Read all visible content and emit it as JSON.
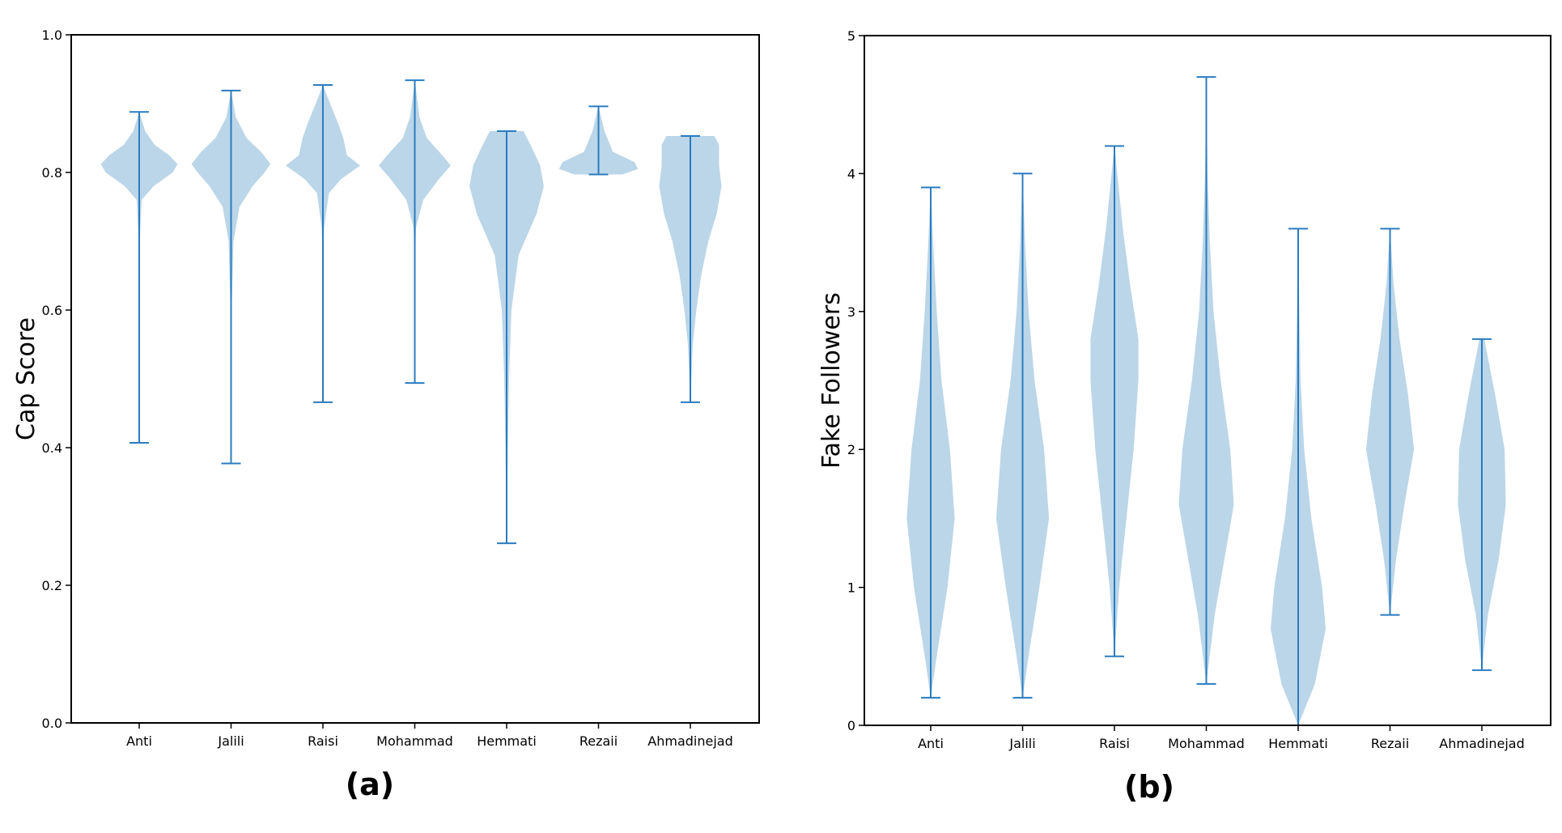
{
  "chart_data": [
    {
      "type": "violin",
      "panel_label": "(a)",
      "title": "",
      "xlabel": "",
      "ylabel": "Cap Score",
      "ylim": [
        0,
        1.0
      ],
      "yticks": [
        "0.0",
        "0.2",
        "0.4",
        "0.6",
        "0.8",
        "1.0"
      ],
      "categories": [
        "Anti",
        "Jalili",
        "Raisi",
        "Mohammad",
        "Hemmati",
        "Rezaii",
        "Ahmadinejad"
      ],
      "series": [
        {
          "name": "Anti",
          "min": 0.407,
          "max": 0.888,
          "profile": [
            [
              0.407,
              0.0
            ],
            [
              0.6,
              0.0
            ],
            [
              0.7,
              0.005
            ],
            [
              0.76,
              0.02
            ],
            [
              0.78,
              0.12
            ],
            [
              0.8,
              0.28
            ],
            [
              0.812,
              0.32
            ],
            [
              0.825,
              0.25
            ],
            [
              0.84,
              0.13
            ],
            [
              0.86,
              0.05
            ],
            [
              0.888,
              0.0
            ]
          ]
        },
        {
          "name": "Jalili",
          "min": 0.377,
          "max": 0.919,
          "profile": [
            [
              0.377,
              0.0
            ],
            [
              0.6,
              0.005
            ],
            [
              0.7,
              0.02
            ],
            [
              0.75,
              0.07
            ],
            [
              0.78,
              0.18
            ],
            [
              0.8,
              0.28
            ],
            [
              0.812,
              0.33
            ],
            [
              0.83,
              0.25
            ],
            [
              0.85,
              0.13
            ],
            [
              0.88,
              0.04
            ],
            [
              0.919,
              0.0
            ]
          ]
        },
        {
          "name": "Raisi",
          "min": 0.466,
          "max": 0.927,
          "profile": [
            [
              0.466,
              0.0
            ],
            [
              0.65,
              0.0
            ],
            [
              0.72,
              0.01
            ],
            [
              0.77,
              0.05
            ],
            [
              0.79,
              0.15
            ],
            [
              0.81,
              0.31
            ],
            [
              0.825,
              0.2
            ],
            [
              0.85,
              0.17
            ],
            [
              0.87,
              0.13
            ],
            [
              0.9,
              0.06
            ],
            [
              0.927,
              0.0
            ]
          ]
        },
        {
          "name": "Mohammad",
          "min": 0.494,
          "max": 0.934,
          "profile": [
            [
              0.494,
              0.0
            ],
            [
              0.65,
              0.0
            ],
            [
              0.72,
              0.01
            ],
            [
              0.76,
              0.07
            ],
            [
              0.79,
              0.2
            ],
            [
              0.81,
              0.3
            ],
            [
              0.825,
              0.23
            ],
            [
              0.85,
              0.1
            ],
            [
              0.88,
              0.04
            ],
            [
              0.934,
              0.0
            ]
          ]
        },
        {
          "name": "Hemmati",
          "min": 0.261,
          "max": 0.86,
          "profile": [
            [
              0.261,
              0.0
            ],
            [
              0.4,
              0.01
            ],
            [
              0.5,
              0.02
            ],
            [
              0.6,
              0.04
            ],
            [
              0.68,
              0.1
            ],
            [
              0.74,
              0.25
            ],
            [
              0.78,
              0.31
            ],
            [
              0.81,
              0.28
            ],
            [
              0.84,
              0.2
            ],
            [
              0.86,
              0.14
            ]
          ]
        },
        {
          "name": "Rezaii",
          "min": 0.797,
          "max": 0.896,
          "profile": [
            [
              0.797,
              0.2
            ],
            [
              0.805,
              0.33
            ],
            [
              0.815,
              0.3
            ],
            [
              0.83,
              0.12
            ],
            [
              0.86,
              0.05
            ],
            [
              0.896,
              0.0
            ]
          ]
        },
        {
          "name": "Ahmadinejad",
          "min": 0.466,
          "max": 0.853,
          "profile": [
            [
              0.466,
              0.0
            ],
            [
              0.55,
              0.02
            ],
            [
              0.6,
              0.05
            ],
            [
              0.65,
              0.09
            ],
            [
              0.7,
              0.15
            ],
            [
              0.74,
              0.22
            ],
            [
              0.78,
              0.26
            ],
            [
              0.81,
              0.24
            ],
            [
              0.84,
              0.24
            ],
            [
              0.853,
              0.2
            ]
          ]
        }
      ]
    },
    {
      "type": "violin",
      "panel_label": "(b)",
      "title": "",
      "xlabel": "",
      "ylabel": "Fake Followers",
      "ylim": [
        0,
        5
      ],
      "yticks": [
        "0",
        "1",
        "2",
        "3",
        "4",
        "5"
      ],
      "categories": [
        "Anti",
        "Jalili",
        "Raisi",
        "Mohammad",
        "Hemmati",
        "Rezaii",
        "Ahmadinejad"
      ],
      "series": [
        {
          "name": "Anti",
          "min": 0.2,
          "max": 3.9,
          "profile": [
            [
              0.2,
              0.0
            ],
            [
              0.5,
              0.05
            ],
            [
              1.0,
              0.14
            ],
            [
              1.5,
              0.2
            ],
            [
              2.0,
              0.16
            ],
            [
              2.5,
              0.09
            ],
            [
              3.0,
              0.05
            ],
            [
              3.5,
              0.02
            ],
            [
              3.9,
              0.0
            ]
          ]
        },
        {
          "name": "Jalili",
          "min": 0.2,
          "max": 4.0,
          "profile": [
            [
              0.2,
              0.0
            ],
            [
              0.5,
              0.05
            ],
            [
              1.0,
              0.14
            ],
            [
              1.5,
              0.22
            ],
            [
              2.0,
              0.18
            ],
            [
              2.5,
              0.1
            ],
            [
              3.0,
              0.05
            ],
            [
              3.5,
              0.02
            ],
            [
              4.0,
              0.0
            ]
          ]
        },
        {
          "name": "Raisi",
          "min": 0.5,
          "max": 4.2,
          "profile": [
            [
              0.5,
              0.0
            ],
            [
              1.0,
              0.04
            ],
            [
              1.5,
              0.1
            ],
            [
              2.0,
              0.16
            ],
            [
              2.5,
              0.2
            ],
            [
              2.8,
              0.2
            ],
            [
              3.2,
              0.13
            ],
            [
              3.6,
              0.07
            ],
            [
              4.2,
              0.0
            ]
          ]
        },
        {
          "name": "Mohammad",
          "min": 0.3,
          "max": 4.7,
          "profile": [
            [
              0.3,
              0.0
            ],
            [
              0.8,
              0.07
            ],
            [
              1.2,
              0.15
            ],
            [
              1.6,
              0.23
            ],
            [
              2.0,
              0.2
            ],
            [
              2.5,
              0.12
            ],
            [
              3.0,
              0.06
            ],
            [
              3.5,
              0.03
            ],
            [
              4.0,
              0.01
            ],
            [
              4.7,
              0.0
            ]
          ]
        },
        {
          "name": "Hemmati",
          "min": 0.0,
          "max": 3.6,
          "profile": [
            [
              0.0,
              0.0
            ],
            [
              0.3,
              0.14
            ],
            [
              0.7,
              0.23
            ],
            [
              1.0,
              0.2
            ],
            [
              1.5,
              0.11
            ],
            [
              2.0,
              0.05
            ],
            [
              2.5,
              0.02
            ],
            [
              3.0,
              0.01
            ],
            [
              3.6,
              0.0
            ]
          ]
        },
        {
          "name": "Rezaii",
          "min": 0.8,
          "max": 3.6,
          "profile": [
            [
              0.8,
              0.0
            ],
            [
              1.2,
              0.05
            ],
            [
              1.6,
              0.12
            ],
            [
              2.0,
              0.2
            ],
            [
              2.4,
              0.15
            ],
            [
              2.8,
              0.08
            ],
            [
              3.2,
              0.03
            ],
            [
              3.6,
              0.0
            ]
          ]
        },
        {
          "name": "Ahmadinejad",
          "min": 0.4,
          "max": 2.8,
          "profile": [
            [
              0.4,
              0.0
            ],
            [
              0.8,
              0.05
            ],
            [
              1.2,
              0.14
            ],
            [
              1.6,
              0.2
            ],
            [
              2.0,
              0.19
            ],
            [
              2.4,
              0.11
            ],
            [
              2.8,
              0.02
            ]
          ]
        }
      ]
    }
  ]
}
